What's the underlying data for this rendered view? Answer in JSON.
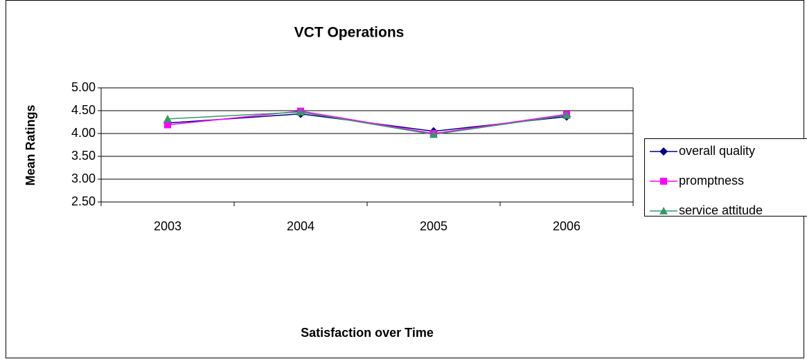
{
  "chart_data": {
    "type": "line",
    "title": "VCT Operations",
    "x_label": "Satisfaction over Time",
    "y_label": "Mean Ratings",
    "categories": [
      "2003",
      "2004",
      "2005",
      "2006"
    ],
    "series": [
      {
        "name": "overall quality",
        "color": "#000080",
        "marker": "diamond",
        "values": [
          4.23,
          4.43,
          4.05,
          4.37
        ]
      },
      {
        "name": "promptness",
        "color": "#ff00ff",
        "marker": "square",
        "values": [
          4.19,
          4.49,
          4.0,
          4.42
        ]
      },
      {
        "name": "service attitude",
        "color": "#339966",
        "marker": "triangle",
        "values": [
          4.32,
          4.47,
          3.98,
          4.4
        ]
      }
    ],
    "ylim": [
      2.5,
      5.0
    ],
    "yticks": [
      {
        "value": 2.5,
        "label": "2.50"
      },
      {
        "value": 3.0,
        "label": "3.00"
      },
      {
        "value": 3.5,
        "label": "3.50"
      },
      {
        "value": 4.0,
        "label": "4.00"
      },
      {
        "value": 4.5,
        "label": "4.50"
      },
      {
        "value": 5.0,
        "label": "5.00"
      }
    ],
    "grid": true,
    "legend": "right"
  }
}
